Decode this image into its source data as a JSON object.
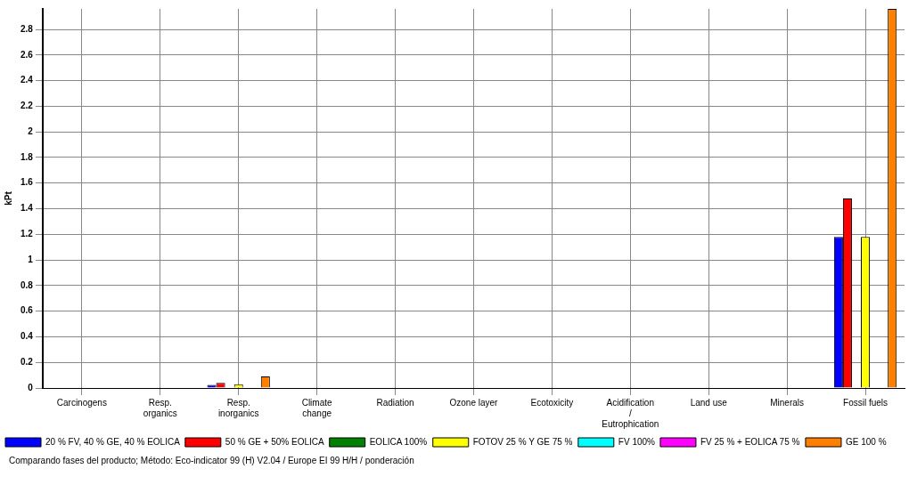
{
  "chart_data": {
    "type": "bar",
    "ylabel": "kPt",
    "categories": [
      "Carcinogens",
      "Resp. organics",
      "Resp. inorganics",
      "Climate change",
      "Radiation",
      "Ozone layer",
      "Ecotoxicity",
      "Acidification / Eutrophication",
      "Land use",
      "Minerals",
      "Fossil fuels"
    ],
    "series": [
      {
        "name": "20 % FV, 40 % GE, 40 % EOLICA",
        "color": "#0000ff",
        "values": [
          0,
          0,
          0.025,
          null,
          0,
          0,
          0,
          0,
          0,
          0,
          1.18
        ]
      },
      {
        "name": "50 % GE + 50% EOLICA",
        "color": "#ff0000",
        "values": [
          0,
          0,
          0.04,
          0,
          0,
          0,
          0,
          0,
          0,
          0,
          1.48
        ]
      },
      {
        "name": "EOLICA 100%",
        "color": "#008000",
        "values": [
          0,
          0,
          0,
          0,
          0,
          0,
          0,
          0,
          0,
          0,
          0
        ]
      },
      {
        "name": "FOTOV 25 % Y GE 75 %",
        "color": "#ffff00",
        "values": [
          0,
          0,
          0.03,
          0,
          0,
          0,
          0,
          0,
          0,
          0,
          1.18
        ]
      },
      {
        "name": "FV 100%",
        "color": "#00ffff",
        "values": [
          0,
          0,
          0,
          0,
          0,
          0,
          0,
          0,
          0,
          0,
          0
        ]
      },
      {
        "name": "FV 25 % + EOLICA 75 %",
        "color": "#ff00ff",
        "values": [
          0,
          0,
          0,
          null,
          0,
          0,
          0,
          null,
          0,
          0,
          0
        ]
      },
      {
        "name": "GE 100 %",
        "color": "#ff8000",
        "values": [
          0,
          0,
          0.09,
          0,
          0,
          0,
          0,
          0,
          0,
          0,
          2.96
        ]
      }
    ],
    "ylim": [
      0,
      2.96
    ],
    "yticks": [
      0,
      0.2,
      0.4,
      0.6,
      0.8,
      1,
      1.2,
      1.4,
      1.6,
      1.8,
      2,
      2.2,
      2.4,
      2.6,
      2.8
    ],
    "grid": true,
    "legend": "bottom",
    "annotations": [
      "Comparando fases del producto; Método: Eco-indicator 99 (H) V2.04 / Europe EI 99 H/H / ponderación"
    ]
  }
}
